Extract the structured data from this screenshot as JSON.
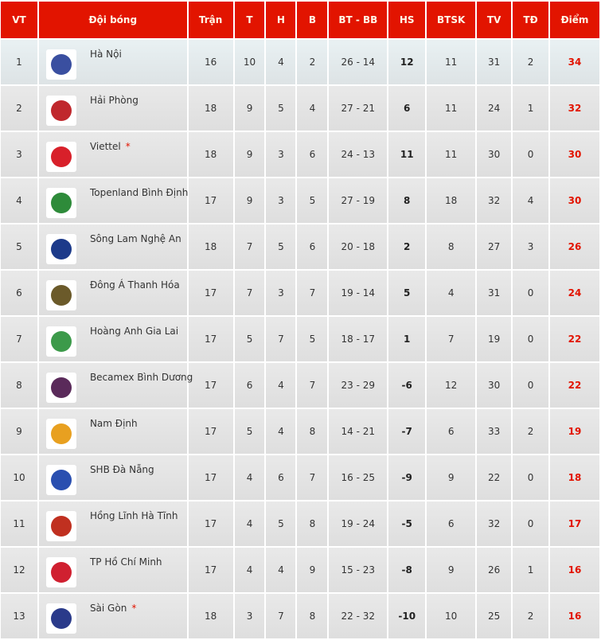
{
  "headers": [
    "VT",
    "Đội bóng",
    "Trận",
    "T",
    "H",
    "B",
    "BT - BB",
    "HS",
    "BTSK",
    "TV",
    "TĐ",
    "Điểm"
  ],
  "accent": "#e21400",
  "rows": [
    {
      "vt": "1",
      "team": "Hà Nội",
      "star": "",
      "p": "16",
      "w": "10",
      "d": "4",
      "l": "2",
      "gd": "26 - 14",
      "hs": "12",
      "btsk": "11",
      "tv": "31",
      "td": "2",
      "pts": "34",
      "logo": "#3a4fa0"
    },
    {
      "vt": "2",
      "team": "Hải Phòng",
      "star": "",
      "p": "18",
      "w": "9",
      "d": "5",
      "l": "4",
      "gd": "27 - 21",
      "hs": "6",
      "btsk": "11",
      "tv": "24",
      "td": "1",
      "pts": "32",
      "logo": "#c0282d"
    },
    {
      "vt": "3",
      "team": "Viettel",
      "star": "*",
      "p": "18",
      "w": "9",
      "d": "3",
      "l": "6",
      "gd": "24 - 13",
      "hs": "11",
      "btsk": "11",
      "tv": "30",
      "td": "0",
      "pts": "30",
      "logo": "#d8202a"
    },
    {
      "vt": "4",
      "team": "Topenland Bình Định",
      "star": "",
      "p": "17",
      "w": "9",
      "d": "3",
      "l": "5",
      "gd": "27 - 19",
      "hs": "8",
      "btsk": "18",
      "tv": "32",
      "td": "4",
      "pts": "30",
      "logo": "#2e8b3a"
    },
    {
      "vt": "5",
      "team": "Sông Lam Nghệ An",
      "star": "",
      "p": "18",
      "w": "7",
      "d": "5",
      "l": "6",
      "gd": "20 - 18",
      "hs": "2",
      "btsk": "8",
      "tv": "27",
      "td": "3",
      "pts": "26",
      "logo": "#1c3a8a"
    },
    {
      "vt": "6",
      "team": "Đông Á Thanh Hóa",
      "star": "",
      "p": "17",
      "w": "7",
      "d": "3",
      "l": "7",
      "gd": "19 - 14",
      "hs": "5",
      "btsk": "4",
      "tv": "31",
      "td": "0",
      "pts": "24",
      "logo": "#6b5a2a"
    },
    {
      "vt": "7",
      "team": "Hoàng Anh Gia Lai",
      "star": "",
      "p": "17",
      "w": "5",
      "d": "7",
      "l": "5",
      "gd": "18 - 17",
      "hs": "1",
      "btsk": "7",
      "tv": "19",
      "td": "0",
      "pts": "22",
      "logo": "#3c9a4a"
    },
    {
      "vt": "8",
      "team": "Becamex Bình Dương",
      "star": "",
      "p": "17",
      "w": "6",
      "d": "4",
      "l": "7",
      "gd": "23 - 29",
      "hs": "-6",
      "btsk": "12",
      "tv": "30",
      "td": "0",
      "pts": "22",
      "logo": "#5a2a5a"
    },
    {
      "vt": "9",
      "team": "Nam Định",
      "star": "",
      "p": "17",
      "w": "5",
      "d": "4",
      "l": "8",
      "gd": "14 - 21",
      "hs": "-7",
      "btsk": "6",
      "tv": "33",
      "td": "2",
      "pts": "19",
      "logo": "#e8a020"
    },
    {
      "vt": "10",
      "team": "SHB Đà Nẵng",
      "star": "",
      "p": "17",
      "w": "4",
      "d": "6",
      "l": "7",
      "gd": "16 - 25",
      "hs": "-9",
      "btsk": "9",
      "tv": "22",
      "td": "0",
      "pts": "18",
      "logo": "#2a4fb0"
    },
    {
      "vt": "11",
      "team": "Hồng Lĩnh Hà Tĩnh",
      "star": "",
      "p": "17",
      "w": "4",
      "d": "5",
      "l": "8",
      "gd": "19 - 24",
      "hs": "-5",
      "btsk": "6",
      "tv": "32",
      "td": "0",
      "pts": "17",
      "logo": "#c03020"
    },
    {
      "vt": "12",
      "team": "TP Hồ Chí Minh",
      "star": "",
      "p": "17",
      "w": "4",
      "d": "4",
      "l": "9",
      "gd": "15 - 23",
      "hs": "-8",
      "btsk": "9",
      "tv": "26",
      "td": "1",
      "pts": "16",
      "logo": "#d02030"
    },
    {
      "vt": "13",
      "team": "Sài Gòn",
      "star": "*",
      "p": "18",
      "w": "3",
      "d": "7",
      "l": "8",
      "gd": "22 - 32",
      "hs": "-10",
      "btsk": "10",
      "tv": "25",
      "td": "2",
      "pts": "16",
      "logo": "#2a3a8a"
    }
  ]
}
